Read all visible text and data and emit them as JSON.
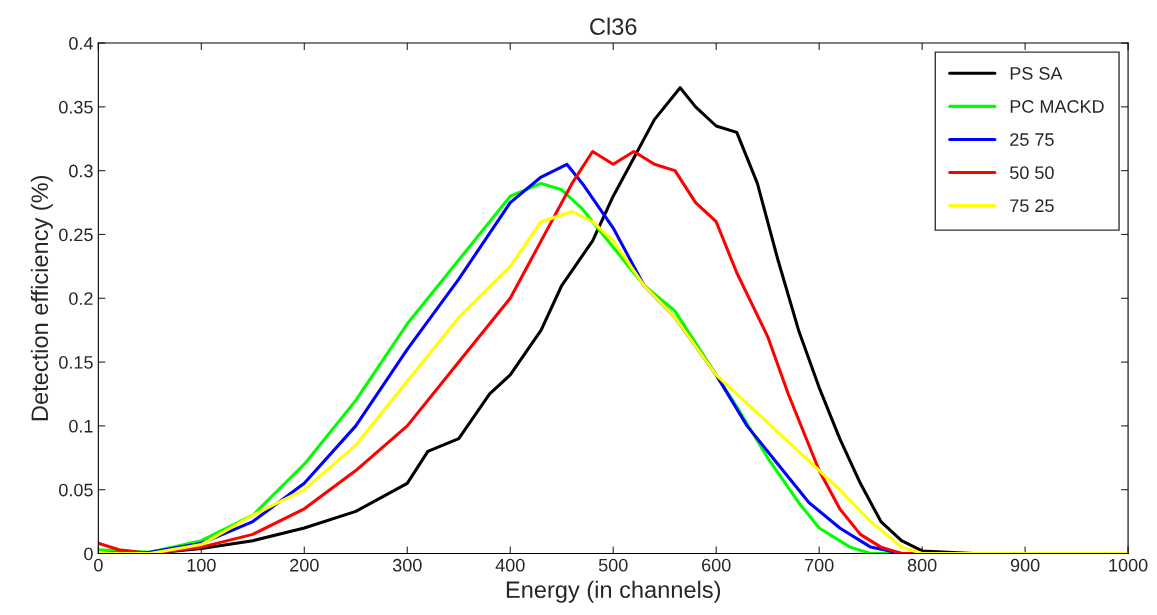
{
  "chart_data": {
    "type": "line",
    "title": "Cl36",
    "xlabel": "Energy (in channels)",
    "ylabel": "Detection efficiency (%)",
    "xlim": [
      0,
      1000
    ],
    "xticks": [
      0,
      100,
      200,
      300,
      400,
      500,
      600,
      700,
      800,
      900,
      1000
    ],
    "ylim": [
      0,
      0.4
    ],
    "yticks": [
      0,
      0.05,
      0.1,
      0.15,
      0.2,
      0.25,
      0.3,
      0.35,
      0.4
    ],
    "grid": false,
    "legend": "top right",
    "marker": "none",
    "line_style": "solid",
    "series": [
      {
        "name": "PS SA",
        "color": "#000000",
        "x": [
          0,
          50,
          100,
          150,
          200,
          250,
          300,
          320,
          350,
          380,
          400,
          430,
          450,
          480,
          500,
          520,
          540,
          565,
          580,
          600,
          620,
          640,
          660,
          680,
          700,
          720,
          740,
          760,
          780,
          800,
          850,
          1000
        ],
        "values": [
          0,
          0,
          0.004,
          0.01,
          0.02,
          0.033,
          0.055,
          0.08,
          0.09,
          0.125,
          0.14,
          0.175,
          0.21,
          0.245,
          0.28,
          0.31,
          0.34,
          0.365,
          0.35,
          0.335,
          0.33,
          0.29,
          0.23,
          0.175,
          0.13,
          0.09,
          0.055,
          0.025,
          0.01,
          0.002,
          0,
          0
        ]
      },
      {
        "name": "PC MACKD",
        "color": "#00ff00",
        "x": [
          0,
          50,
          100,
          150,
          200,
          250,
          300,
          350,
          400,
          430,
          450,
          470,
          500,
          530,
          560,
          600,
          620,
          650,
          680,
          700,
          730,
          750,
          1000
        ],
        "values": [
          0.003,
          0.001,
          0.01,
          0.03,
          0.07,
          0.12,
          0.18,
          0.23,
          0.28,
          0.29,
          0.285,
          0.27,
          0.24,
          0.21,
          0.19,
          0.14,
          0.115,
          0.075,
          0.04,
          0.02,
          0.005,
          0,
          0
        ]
      },
      {
        "name": "25 75",
        "color": "#0000ff",
        "x": [
          0,
          50,
          100,
          150,
          200,
          250,
          300,
          350,
          400,
          430,
          455,
          470,
          500,
          530,
          560,
          600,
          630,
          660,
          690,
          720,
          750,
          780,
          1000
        ],
        "values": [
          0,
          0.001,
          0.008,
          0.025,
          0.055,
          0.1,
          0.16,
          0.215,
          0.275,
          0.295,
          0.305,
          0.29,
          0.255,
          0.21,
          0.185,
          0.14,
          0.1,
          0.07,
          0.04,
          0.02,
          0.005,
          0,
          0
        ]
      },
      {
        "name": "50 50",
        "color": "#ff0000",
        "x": [
          0,
          20,
          50,
          100,
          150,
          200,
          250,
          300,
          350,
          400,
          430,
          460,
          480,
          500,
          520,
          540,
          560,
          580,
          600,
          620,
          650,
          670,
          700,
          720,
          740,
          760,
          780,
          1000
        ],
        "values": [
          0.008,
          0.003,
          0,
          0.005,
          0.015,
          0.035,
          0.065,
          0.1,
          0.15,
          0.2,
          0.245,
          0.29,
          0.315,
          0.305,
          0.315,
          0.305,
          0.3,
          0.275,
          0.26,
          0.22,
          0.17,
          0.125,
          0.065,
          0.035,
          0.015,
          0.005,
          0,
          0
        ]
      },
      {
        "name": "75 25",
        "color": "#ffff00",
        "x": [
          0,
          50,
          100,
          150,
          200,
          250,
          300,
          350,
          400,
          430,
          460,
          480,
          500,
          530,
          560,
          600,
          640,
          680,
          720,
          750,
          780,
          800,
          1000
        ],
        "values": [
          0,
          0,
          0.007,
          0.03,
          0.05,
          0.085,
          0.135,
          0.185,
          0.225,
          0.26,
          0.268,
          0.26,
          0.245,
          0.21,
          0.185,
          0.14,
          0.11,
          0.08,
          0.05,
          0.025,
          0.005,
          0,
          0
        ]
      }
    ]
  }
}
